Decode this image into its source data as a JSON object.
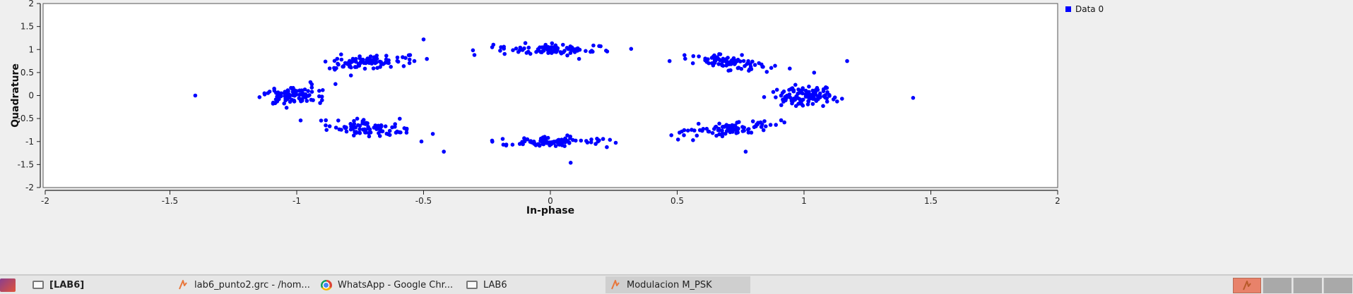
{
  "chart_data": {
    "type": "scatter",
    "title": "",
    "xlabel": "In-phase",
    "ylabel": "Quadrature",
    "xlim": [
      -2,
      2
    ],
    "ylim": [
      -2,
      2
    ],
    "x_ticks": [
      "-2",
      "-1.5",
      "-1",
      "-0.5",
      "0",
      "0.5",
      "1",
      "1.5",
      "2"
    ],
    "y_ticks": [
      "2",
      "1.5",
      "1",
      "0.5",
      "0",
      "-0.5",
      "-1",
      "-1.5",
      "-2"
    ],
    "grid": false,
    "legend": "top-right",
    "series": [
      {
        "name": "Data 0",
        "color": "#0000ff",
        "clusters": [
          {
            "center": [
              1.0,
              0.0
            ],
            "count": 110
          },
          {
            "center": [
              0.72,
              0.72
            ],
            "count": 85
          },
          {
            "center": [
              0.0,
              1.0
            ],
            "count": 85
          },
          {
            "center": [
              -0.72,
              0.72
            ],
            "count": 90
          },
          {
            "center": [
              -1.0,
              0.0
            ],
            "count": 95
          },
          {
            "center": [
              -0.72,
              -0.72
            ],
            "count": 90
          },
          {
            "center": [
              0.0,
              -1.0
            ],
            "count": 90
          },
          {
            "center": [
              0.72,
              -0.72
            ],
            "count": 90
          }
        ],
        "outliers": [
          [
            -1.4,
            0.0
          ],
          [
            1.43,
            -0.05
          ],
          [
            -0.42,
            -1.22
          ],
          [
            0.08,
            -1.46
          ],
          [
            0.77,
            -1.22
          ],
          [
            1.17,
            0.75
          ],
          [
            0.47,
            0.75
          ],
          [
            -0.5,
            1.22
          ]
        ]
      }
    ]
  },
  "taskbar": {
    "items": [
      {
        "label": "[LAB6]",
        "icon": "window-icon"
      },
      {
        "label": "lab6_punto2.grc - /hom...",
        "icon": "gnuradio-icon"
      },
      {
        "label": "WhatsApp - Google Chr...",
        "icon": "chrome-icon"
      },
      {
        "label": "LAB6",
        "icon": "window-icon"
      },
      {
        "label": "Modulacion M_PSK",
        "icon": "gnuradio-icon"
      }
    ],
    "active_item": "Modulacion M_PSK",
    "workspaces": 4,
    "active_workspace": 1,
    "accent_color": "#e8826a"
  }
}
